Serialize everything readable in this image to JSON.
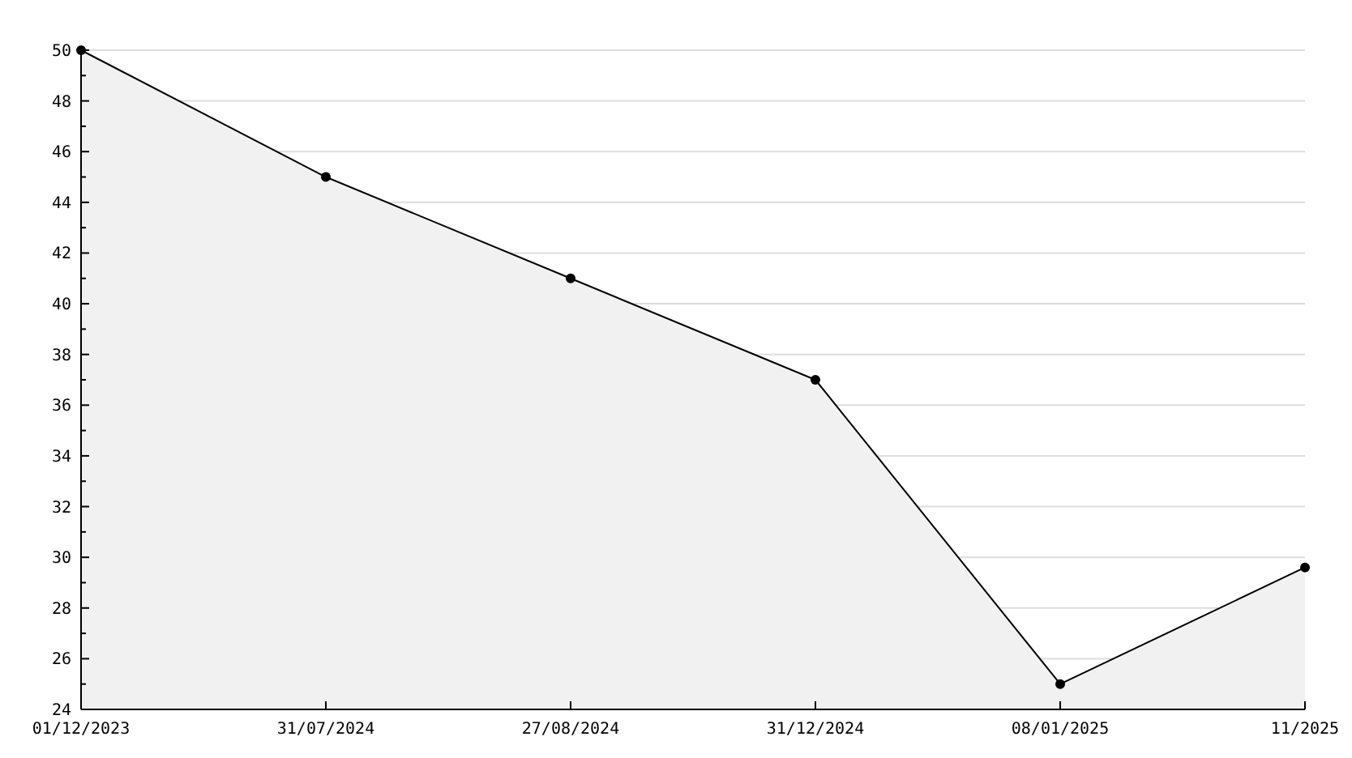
{
  "chart_data": {
    "type": "area",
    "categories": [
      "01/12/2023",
      "31/07/2024",
      "27/08/2024",
      "31/12/2024",
      "08/01/2025",
      "11/2025"
    ],
    "series": [
      {
        "color": "#000000",
        "values": [
          50,
          45,
          41,
          37,
          25,
          29.6
        ]
      }
    ],
    "ylim": [
      24,
      50
    ],
    "yticks": [
      24,
      {
        "value": 25,
        "label": null
      },
      26,
      {
        "value": 27,
        "label": null
      },
      28,
      {
        "value": 29,
        "label": null
      },
      30,
      {
        "value": 31,
        "label": null
      },
      32,
      {
        "value": 33,
        "label": null
      },
      34,
      {
        "value": 35,
        "label": null
      },
      36,
      {
        "value": 37,
        "label": null
      },
      38,
      {
        "value": 39,
        "label": null
      },
      40,
      {
        "value": 41,
        "label": null
      },
      42,
      {
        "value": 43,
        "label": null
      },
      44,
      {
        "value": 45,
        "label": null
      },
      46,
      {
        "value": 47,
        "label": null
      },
      48,
      {
        "value": 49,
        "label": null
      },
      50
    ],
    "grid": "y",
    "marker": "circle",
    "line_style": "solid"
  }
}
